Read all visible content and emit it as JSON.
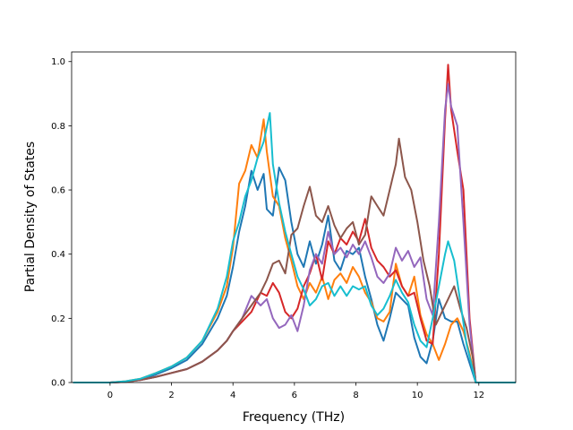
{
  "chart_data": {
    "type": "line",
    "title": "",
    "xlabel": "Frequency (THz)",
    "ylabel": "Partial Density of States",
    "xlim": [
      -1.25,
      13.2
    ],
    "ylim": [
      0.0,
      1.03
    ],
    "xticks": [
      0,
      2,
      4,
      6,
      8,
      10,
      12
    ],
    "yticks": [
      0.0,
      0.2,
      0.4,
      0.6,
      0.8,
      1.0
    ],
    "xtick_labels": [
      "0",
      "2",
      "4",
      "6",
      "8",
      "10",
      "12"
    ],
    "ytick_labels": [
      "0.0",
      "0.2",
      "0.4",
      "0.6",
      "0.8",
      "1.0"
    ],
    "grid": false,
    "legend": "none",
    "series": [
      {
        "color": "#1f77b4",
        "points": [
          [
            -1.2,
            0
          ],
          [
            0,
            0
          ],
          [
            0.5,
            0.003
          ],
          [
            1,
            0.01
          ],
          [
            1.5,
            0.025
          ],
          [
            2,
            0.045
          ],
          [
            2.5,
            0.07
          ],
          [
            3,
            0.12
          ],
          [
            3.5,
            0.2
          ],
          [
            3.8,
            0.27
          ],
          [
            4,
            0.36
          ],
          [
            4.2,
            0.47
          ],
          [
            4.4,
            0.55
          ],
          [
            4.6,
            0.66
          ],
          [
            4.8,
            0.6
          ],
          [
            5,
            0.65
          ],
          [
            5.1,
            0.54
          ],
          [
            5.3,
            0.52
          ],
          [
            5.5,
            0.67
          ],
          [
            5.7,
            0.63
          ],
          [
            5.9,
            0.5
          ],
          [
            6.1,
            0.4
          ],
          [
            6.3,
            0.36
          ],
          [
            6.5,
            0.44
          ],
          [
            6.7,
            0.37
          ],
          [
            6.9,
            0.43
          ],
          [
            7.1,
            0.52
          ],
          [
            7.3,
            0.38
          ],
          [
            7.5,
            0.35
          ],
          [
            7.7,
            0.41
          ],
          [
            7.9,
            0.4
          ],
          [
            8.1,
            0.42
          ],
          [
            8.3,
            0.33
          ],
          [
            8.5,
            0.26
          ],
          [
            8.7,
            0.18
          ],
          [
            8.9,
            0.13
          ],
          [
            9.1,
            0.2
          ],
          [
            9.3,
            0.28
          ],
          [
            9.5,
            0.26
          ],
          [
            9.7,
            0.24
          ],
          [
            9.9,
            0.14
          ],
          [
            10.1,
            0.08
          ],
          [
            10.3,
            0.06
          ],
          [
            10.5,
            0.13
          ],
          [
            10.7,
            0.26
          ],
          [
            10.9,
            0.2
          ],
          [
            11.1,
            0.19
          ],
          [
            11.3,
            0.19
          ],
          [
            11.5,
            0.12
          ],
          [
            11.7,
            0.06
          ],
          [
            11.9,
            0
          ],
          [
            13.2,
            0
          ]
        ]
      },
      {
        "color": "#ff7f0e",
        "points": [
          [
            -1.2,
            0
          ],
          [
            0,
            0
          ],
          [
            0.5,
            0.004
          ],
          [
            1,
            0.012
          ],
          [
            1.5,
            0.03
          ],
          [
            2,
            0.05
          ],
          [
            2.5,
            0.078
          ],
          [
            3,
            0.13
          ],
          [
            3.5,
            0.22
          ],
          [
            3.8,
            0.3
          ],
          [
            4,
            0.42
          ],
          [
            4.2,
            0.62
          ],
          [
            4.4,
            0.66
          ],
          [
            4.6,
            0.74
          ],
          [
            4.8,
            0.7
          ],
          [
            5,
            0.82
          ],
          [
            5.1,
            0.72
          ],
          [
            5.3,
            0.58
          ],
          [
            5.5,
            0.55
          ],
          [
            5.7,
            0.45
          ],
          [
            5.9,
            0.38
          ],
          [
            6.1,
            0.3
          ],
          [
            6.3,
            0.26
          ],
          [
            6.5,
            0.31
          ],
          [
            6.7,
            0.28
          ],
          [
            6.9,
            0.33
          ],
          [
            7.1,
            0.26
          ],
          [
            7.3,
            0.32
          ],
          [
            7.5,
            0.34
          ],
          [
            7.7,
            0.31
          ],
          [
            7.9,
            0.36
          ],
          [
            8.1,
            0.33
          ],
          [
            8.3,
            0.28
          ],
          [
            8.5,
            0.25
          ],
          [
            8.7,
            0.2
          ],
          [
            8.9,
            0.19
          ],
          [
            9.1,
            0.22
          ],
          [
            9.3,
            0.37
          ],
          [
            9.5,
            0.3
          ],
          [
            9.7,
            0.27
          ],
          [
            9.9,
            0.33
          ],
          [
            10.1,
            0.21
          ],
          [
            10.3,
            0.15
          ],
          [
            10.5,
            0.12
          ],
          [
            10.7,
            0.07
          ],
          [
            10.9,
            0.12
          ],
          [
            11.1,
            0.18
          ],
          [
            11.3,
            0.2
          ],
          [
            11.5,
            0.16
          ],
          [
            11.7,
            0.09
          ],
          [
            11.9,
            0
          ],
          [
            13.2,
            0
          ]
        ]
      },
      {
        "color": "#d62728",
        "points": [
          [
            -1.2,
            0
          ],
          [
            0,
            0
          ],
          [
            0.5,
            0.002
          ],
          [
            1,
            0.008
          ],
          [
            1.5,
            0.018
          ],
          [
            2,
            0.03
          ],
          [
            2.5,
            0.042
          ],
          [
            3,
            0.065
          ],
          [
            3.5,
            0.1
          ],
          [
            3.8,
            0.13
          ],
          [
            4,
            0.16
          ],
          [
            4.3,
            0.19
          ],
          [
            4.6,
            0.22
          ],
          [
            4.9,
            0.28
          ],
          [
            5.1,
            0.27
          ],
          [
            5.3,
            0.31
          ],
          [
            5.5,
            0.28
          ],
          [
            5.7,
            0.22
          ],
          [
            5.9,
            0.2
          ],
          [
            6.1,
            0.23
          ],
          [
            6.3,
            0.3
          ],
          [
            6.5,
            0.34
          ],
          [
            6.7,
            0.4
          ],
          [
            6.9,
            0.32
          ],
          [
            7.1,
            0.44
          ],
          [
            7.3,
            0.4
          ],
          [
            7.5,
            0.45
          ],
          [
            7.7,
            0.43
          ],
          [
            7.9,
            0.47
          ],
          [
            8.1,
            0.44
          ],
          [
            8.3,
            0.51
          ],
          [
            8.5,
            0.42
          ],
          [
            8.7,
            0.38
          ],
          [
            8.9,
            0.36
          ],
          [
            9.1,
            0.33
          ],
          [
            9.3,
            0.35
          ],
          [
            9.5,
            0.3
          ],
          [
            9.7,
            0.27
          ],
          [
            9.9,
            0.28
          ],
          [
            10.1,
            0.2
          ],
          [
            10.3,
            0.13
          ],
          [
            10.5,
            0.12
          ],
          [
            10.7,
            0.4
          ],
          [
            10.9,
            0.82
          ],
          [
            11,
            0.99
          ],
          [
            11.1,
            0.85
          ],
          [
            11.3,
            0.72
          ],
          [
            11.5,
            0.6
          ],
          [
            11.7,
            0.2
          ],
          [
            11.9,
            0
          ],
          [
            13.2,
            0
          ]
        ]
      },
      {
        "color": "#9467bd",
        "points": [
          [
            -1.2,
            0
          ],
          [
            0,
            0
          ],
          [
            0.5,
            0.002
          ],
          [
            1,
            0.008
          ],
          [
            1.5,
            0.018
          ],
          [
            2,
            0.03
          ],
          [
            2.5,
            0.042
          ],
          [
            3,
            0.065
          ],
          [
            3.5,
            0.1
          ],
          [
            3.8,
            0.13
          ],
          [
            4,
            0.16
          ],
          [
            4.3,
            0.2
          ],
          [
            4.6,
            0.27
          ],
          [
            4.9,
            0.24
          ],
          [
            5.1,
            0.26
          ],
          [
            5.3,
            0.2
          ],
          [
            5.5,
            0.17
          ],
          [
            5.7,
            0.18
          ],
          [
            5.9,
            0.21
          ],
          [
            6.1,
            0.16
          ],
          [
            6.3,
            0.24
          ],
          [
            6.5,
            0.35
          ],
          [
            6.7,
            0.4
          ],
          [
            6.9,
            0.37
          ],
          [
            7.1,
            0.47
          ],
          [
            7.3,
            0.4
          ],
          [
            7.5,
            0.42
          ],
          [
            7.7,
            0.39
          ],
          [
            7.9,
            0.43
          ],
          [
            8.1,
            0.4
          ],
          [
            8.3,
            0.44
          ],
          [
            8.5,
            0.39
          ],
          [
            8.7,
            0.33
          ],
          [
            8.9,
            0.31
          ],
          [
            9.1,
            0.34
          ],
          [
            9.3,
            0.42
          ],
          [
            9.5,
            0.38
          ],
          [
            9.7,
            0.41
          ],
          [
            9.9,
            0.36
          ],
          [
            10.1,
            0.39
          ],
          [
            10.3,
            0.26
          ],
          [
            10.5,
            0.21
          ],
          [
            10.7,
            0.5
          ],
          [
            10.9,
            0.85
          ],
          [
            11,
            0.93
          ],
          [
            11.1,
            0.86
          ],
          [
            11.3,
            0.8
          ],
          [
            11.5,
            0.5
          ],
          [
            11.7,
            0.18
          ],
          [
            11.9,
            0
          ],
          [
            13.2,
            0
          ]
        ]
      },
      {
        "color": "#8c564b",
        "points": [
          [
            -1.2,
            0
          ],
          [
            0,
            0
          ],
          [
            0.5,
            0.002
          ],
          [
            1,
            0.008
          ],
          [
            1.5,
            0.018
          ],
          [
            2,
            0.03
          ],
          [
            2.5,
            0.042
          ],
          [
            3,
            0.065
          ],
          [
            3.5,
            0.1
          ],
          [
            3.8,
            0.13
          ],
          [
            4,
            0.16
          ],
          [
            4.3,
            0.2
          ],
          [
            4.6,
            0.24
          ],
          [
            4.9,
            0.28
          ],
          [
            5.1,
            0.32
          ],
          [
            5.3,
            0.37
          ],
          [
            5.5,
            0.38
          ],
          [
            5.7,
            0.34
          ],
          [
            5.9,
            0.46
          ],
          [
            6.1,
            0.48
          ],
          [
            6.3,
            0.55
          ],
          [
            6.5,
            0.61
          ],
          [
            6.7,
            0.52
          ],
          [
            6.9,
            0.5
          ],
          [
            7.1,
            0.55
          ],
          [
            7.3,
            0.49
          ],
          [
            7.5,
            0.45
          ],
          [
            7.7,
            0.48
          ],
          [
            7.9,
            0.5
          ],
          [
            8.1,
            0.43
          ],
          [
            8.3,
            0.46
          ],
          [
            8.5,
            0.58
          ],
          [
            8.7,
            0.55
          ],
          [
            8.9,
            0.52
          ],
          [
            9.1,
            0.6
          ],
          [
            9.3,
            0.68
          ],
          [
            9.4,
            0.76
          ],
          [
            9.6,
            0.64
          ],
          [
            9.8,
            0.6
          ],
          [
            10,
            0.5
          ],
          [
            10.2,
            0.38
          ],
          [
            10.4,
            0.3
          ],
          [
            10.6,
            0.18
          ],
          [
            10.8,
            0.22
          ],
          [
            11,
            0.26
          ],
          [
            11.2,
            0.3
          ],
          [
            11.4,
            0.23
          ],
          [
            11.6,
            0.17
          ],
          [
            11.8,
            0.08
          ],
          [
            11.9,
            0
          ],
          [
            13.2,
            0
          ]
        ]
      },
      {
        "color": "#17becf",
        "points": [
          [
            -1.2,
            0
          ],
          [
            0,
            0
          ],
          [
            0.5,
            0.004
          ],
          [
            1,
            0.012
          ],
          [
            1.5,
            0.03
          ],
          [
            2,
            0.05
          ],
          [
            2.5,
            0.078
          ],
          [
            3,
            0.13
          ],
          [
            3.5,
            0.23
          ],
          [
            3.8,
            0.33
          ],
          [
            4,
            0.44
          ],
          [
            4.2,
            0.5
          ],
          [
            4.4,
            0.58
          ],
          [
            4.6,
            0.63
          ],
          [
            4.8,
            0.7
          ],
          [
            5,
            0.75
          ],
          [
            5.2,
            0.84
          ],
          [
            5.3,
            0.68
          ],
          [
            5.5,
            0.56
          ],
          [
            5.7,
            0.47
          ],
          [
            5.9,
            0.4
          ],
          [
            6.1,
            0.33
          ],
          [
            6.3,
            0.29
          ],
          [
            6.5,
            0.24
          ],
          [
            6.7,
            0.26
          ],
          [
            6.9,
            0.3
          ],
          [
            7.1,
            0.31
          ],
          [
            7.3,
            0.27
          ],
          [
            7.5,
            0.3
          ],
          [
            7.7,
            0.27
          ],
          [
            7.9,
            0.3
          ],
          [
            8.1,
            0.29
          ],
          [
            8.3,
            0.3
          ],
          [
            8.5,
            0.24
          ],
          [
            8.7,
            0.21
          ],
          [
            8.9,
            0.23
          ],
          [
            9.1,
            0.27
          ],
          [
            9.3,
            0.32
          ],
          [
            9.5,
            0.28
          ],
          [
            9.7,
            0.25
          ],
          [
            9.9,
            0.18
          ],
          [
            10.1,
            0.13
          ],
          [
            10.3,
            0.11
          ],
          [
            10.5,
            0.2
          ],
          [
            10.7,
            0.3
          ],
          [
            10.9,
            0.4
          ],
          [
            11,
            0.44
          ],
          [
            11.2,
            0.38
          ],
          [
            11.4,
            0.25
          ],
          [
            11.6,
            0.12
          ],
          [
            11.9,
            0
          ],
          [
            13.2,
            0
          ]
        ]
      }
    ]
  }
}
